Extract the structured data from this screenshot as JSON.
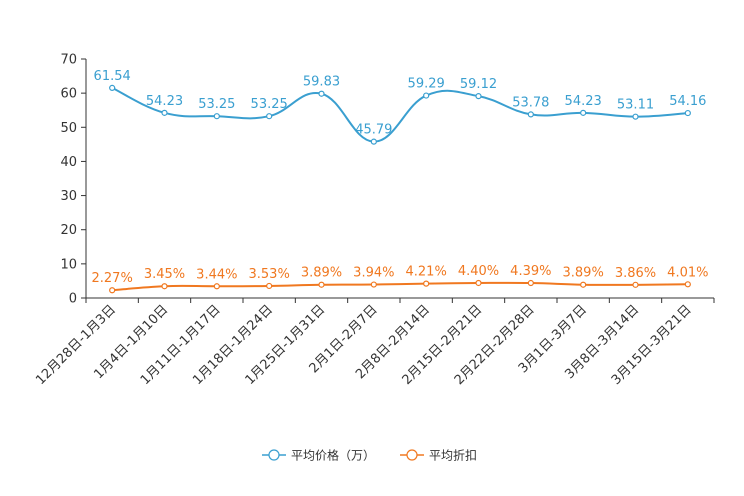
{
  "chart_data": {
    "type": "line",
    "categories": [
      "12月28日-1月3日",
      "1月4日-1月10日",
      "1月11日-1月17日",
      "1月18日-1月24日",
      "1月25日-1月31日",
      "2月1日-2月7日",
      "2月8日-2月14日",
      "2月15日-2月21日",
      "2月22日-2月28日",
      "3月1日-3月7日",
      "3月8日-3月14日",
      "3月15日-3月21日"
    ],
    "ylim": [
      0,
      70
    ],
    "yticks": [
      0,
      10,
      20,
      30,
      40,
      50,
      60,
      70
    ],
    "grid": false,
    "legend_position": "bottom-center",
    "series": [
      {
        "name": "平均价格（万）",
        "color": "#3a9fd0",
        "values": [
          61.54,
          54.23,
          53.25,
          53.25,
          59.83,
          45.79,
          59.29,
          59.12,
          53.78,
          54.23,
          53.11,
          54.16
        ],
        "labels": [
          "61.54",
          "54.23",
          "53.25",
          "53.25",
          "59.83",
          "45.79",
          "59.29",
          "59.12",
          "53.78",
          "54.23",
          "53.11",
          "54.16"
        ]
      },
      {
        "name": "平均折扣",
        "color": "#f07820",
        "values": [
          2.27,
          3.45,
          3.44,
          3.53,
          3.89,
          3.94,
          4.21,
          4.4,
          4.39,
          3.89,
          3.86,
          4.01
        ],
        "labels": [
          "2.27%",
          "3.45%",
          "3.44%",
          "3.53%",
          "3.89%",
          "3.94%",
          "4.21%",
          "4.40%",
          "4.39%",
          "3.89%",
          "3.86%",
          "4.01%"
        ]
      }
    ]
  }
}
